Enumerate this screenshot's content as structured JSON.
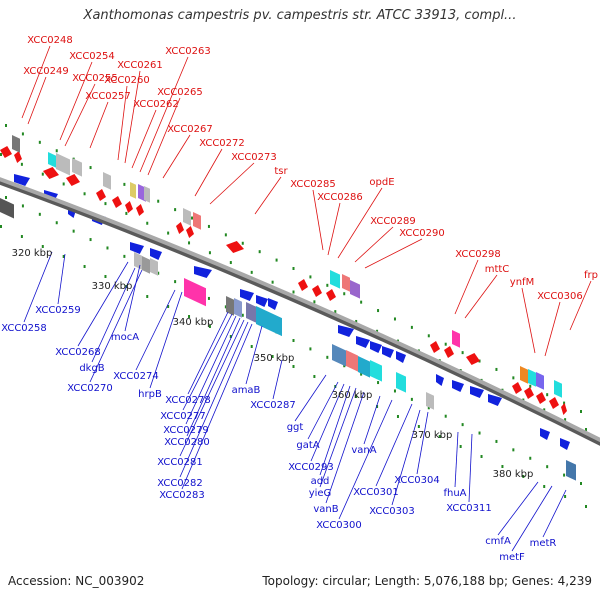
{
  "title": "Xanthomonas campestris pv. campestris str. ATCC 33913, compl...",
  "footer": {
    "accession": "Accession: NC_003902",
    "topology": "Topology: circular; Length: 5,076,188 bp; Genes: 4,239"
  },
  "colors": {
    "forward_label": "#dd1111",
    "reverse_label": "#1111cc",
    "backbone": "#8a8a8a",
    "tick": "#228822"
  },
  "scale_labels": [
    "320 kbp",
    "330 kbp",
    "340 kbp",
    "350 kbp",
    "360 kbp",
    "370 kbp",
    "380 kbp"
  ],
  "forward_genes": [
    "XCC0248",
    "XCC0249",
    "XCC0254",
    "XCC0255",
    "XCC0257",
    "XCC0260",
    "XCC0261",
    "XCC0262",
    "XCC0263",
    "XCC0265",
    "XCC0267",
    "XCC0272",
    "XCC0273",
    "tsr",
    "XCC0285",
    "XCC0286",
    "opdE",
    "XCC0289",
    "XCC0290",
    "XCC0298",
    "mttC",
    "ynfM",
    "XCC0306",
    "frp"
  ],
  "reverse_genes": [
    "XCC0258",
    "XCC0259",
    "XCC0268",
    "mocA",
    "dkgB",
    "XCC0270",
    "XCC0274",
    "hrpB",
    "XCC0278",
    "XCC0277",
    "XCC0279",
    "XCC0280",
    "XCC0281",
    "XCC0282",
    "XCC0283",
    "amaB",
    "XCC0287",
    "ggt",
    "gatA",
    "XCC0293",
    "add",
    "yieG",
    "vanB",
    "vanA",
    "XCC0300",
    "XCC0301",
    "XCC0303",
    "XCC0304",
    "fhuA",
    "XCC0311",
    "cmfA",
    "metF",
    "metR"
  ]
}
